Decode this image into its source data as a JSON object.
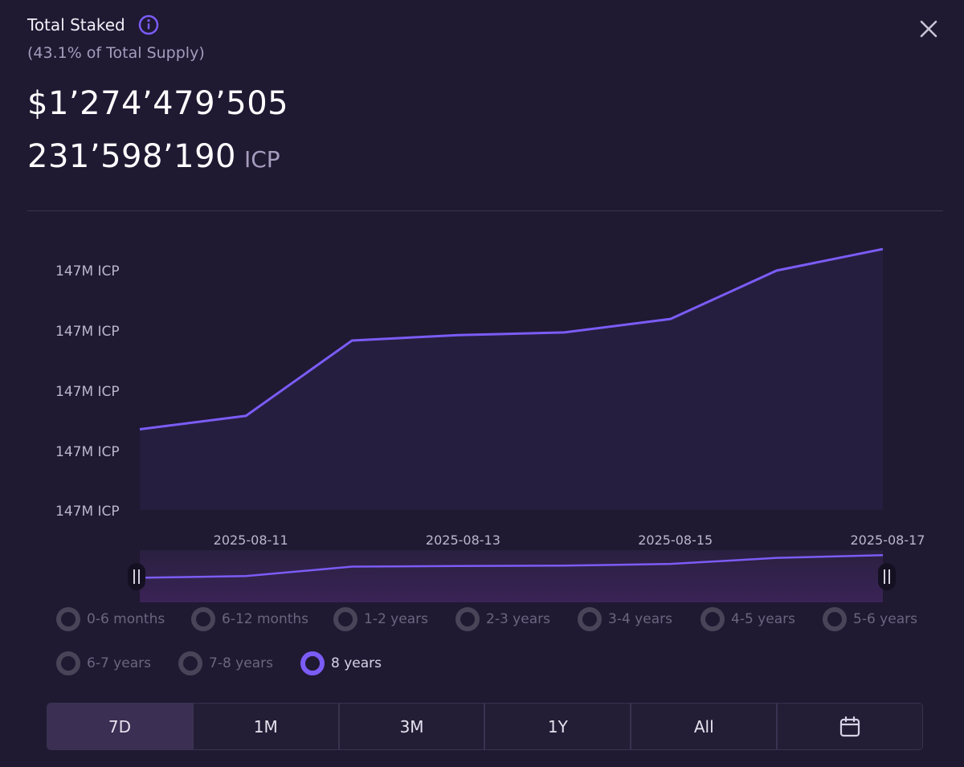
{
  "header": {
    "title": "Total Staked",
    "subtitle": "(43.1% of Total Supply)",
    "usd_value": "$1’274’479’505",
    "icp_value": "231’598’190",
    "icp_unit": "ICP"
  },
  "colors": {
    "background": "#1f1932",
    "accent": "#7b5cf6",
    "muted_text": "#a69cbd"
  },
  "icons": {
    "info": "info-icon",
    "close": "close-icon",
    "calendar": "calendar-icon"
  },
  "chart_data": {
    "type": "area",
    "x": [
      "2025-08-10",
      "2025-08-11",
      "2025-08-12",
      "2025-08-13",
      "2025-08-14",
      "2025-08-15",
      "2025-08-16",
      "2025-08-17"
    ],
    "values": [
      0.3,
      0.35,
      0.63,
      0.65,
      0.66,
      0.71,
      0.89,
      0.97
    ],
    "y_tick_labels": [
      "147M ICP",
      "147M ICP",
      "147M ICP",
      "147M ICP",
      "147M ICP"
    ],
    "x_tick_labels": [
      "2025-08-11",
      "2025-08-13",
      "2025-08-15",
      "2025-08-17"
    ],
    "ylim": [
      0,
      1
    ],
    "grid": false,
    "has_range_navigator": true
  },
  "filters": [
    {
      "label": "0-6 months",
      "selected": false
    },
    {
      "label": "6-12 months",
      "selected": false
    },
    {
      "label": "1-2 years",
      "selected": false
    },
    {
      "label": "2-3 years",
      "selected": false
    },
    {
      "label": "3-4 years",
      "selected": false
    },
    {
      "label": "4-5 years",
      "selected": false
    },
    {
      "label": "5-6 years",
      "selected": false
    },
    {
      "label": "6-7 years",
      "selected": false
    },
    {
      "label": "7-8 years",
      "selected": false
    },
    {
      "label": "8 years",
      "selected": true
    }
  ],
  "range_buttons": [
    {
      "label": "7D",
      "active": true
    },
    {
      "label": "1M",
      "active": false
    },
    {
      "label": "3M",
      "active": false
    },
    {
      "label": "1Y",
      "active": false
    },
    {
      "label": "All",
      "active": false
    }
  ]
}
